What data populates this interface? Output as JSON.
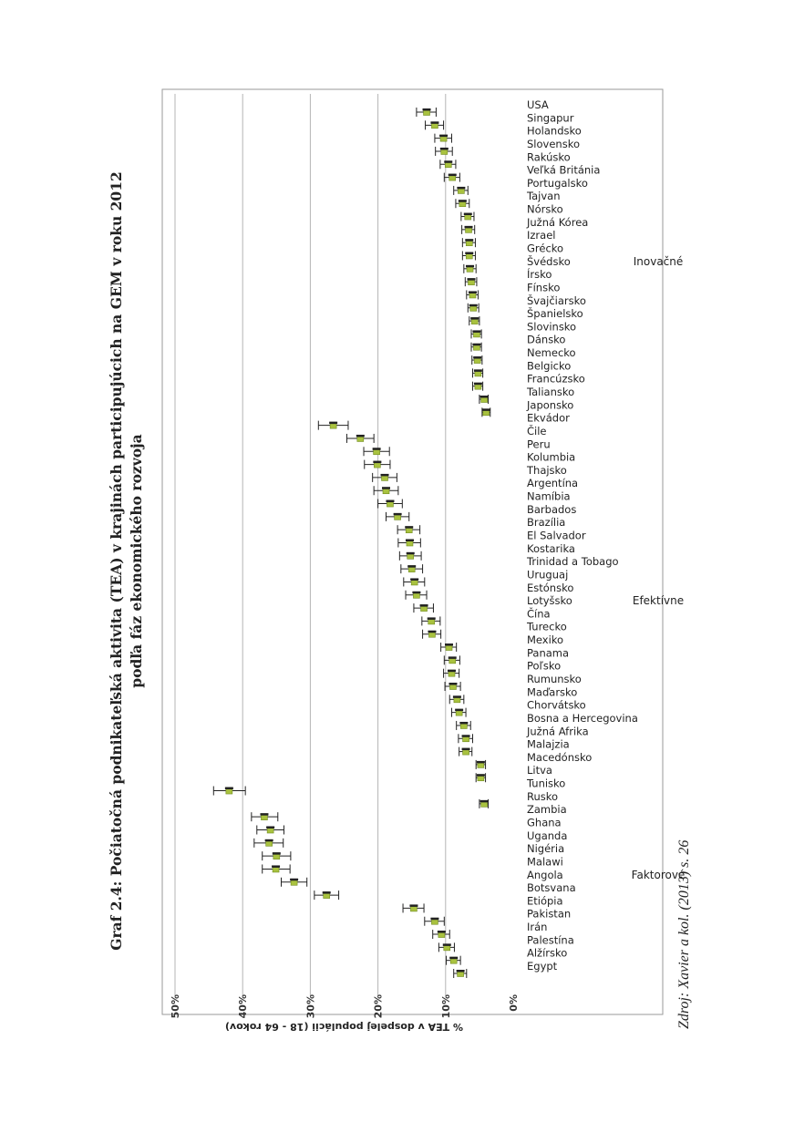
{
  "title_line1": "Graf 2.4: Počiatočná podnikateľská aktivita (TEA) v krajinách participujúcich na GEM v roku 2012",
  "title_line2": "podľa fáz ekonomického rozvoja",
  "source": "Zdroj: Xavier a kol. (2013) s. 26",
  "chart_data": {
    "type": "scatter",
    "title": "Graf 2.4: Počiatočná podnikateľská aktivita (TEA) v krajinách participujúcich na GEM v roku 2012",
    "subtitle": "podľa fáz ekonomického rozvoja",
    "ylabel": "% TEA v dospelej populácii (18 - 64 rokov)",
    "xlabel": "",
    "ylim": [
      0,
      50
    ],
    "yticks": [
      "0%",
      "10%",
      "20%",
      "30%",
      "40%",
      "50%"
    ],
    "grid": true,
    "error_bars": true,
    "marker_color": "#a9c23f",
    "groups": [
      {
        "label": "Faktorové",
        "start": 0,
        "end": 14
      },
      {
        "label": "Efektívne",
        "start": 15,
        "end": 41
      },
      {
        "label": "Inovačné",
        "start": 42,
        "end": 66
      }
    ],
    "points": [
      {
        "country": "Egypt",
        "value": 7.8,
        "low": 6.9,
        "high": 8.8
      },
      {
        "country": "Alžírsko",
        "value": 8.8,
        "low": 7.8,
        "high": 9.9
      },
      {
        "country": "Palestína",
        "value": 9.8,
        "low": 8.7,
        "high": 11.0
      },
      {
        "country": "Irán",
        "value": 10.6,
        "low": 9.4,
        "high": 11.9
      },
      {
        "country": "Pakistan",
        "value": 11.6,
        "low": 10.2,
        "high": 13.1
      },
      {
        "country": "Etiópia",
        "value": 14.7,
        "low": 13.2,
        "high": 16.3
      },
      {
        "country": "Botsvana",
        "value": 27.6,
        "low": 25.8,
        "high": 29.4
      },
      {
        "country": "Angola",
        "value": 32.4,
        "low": 30.5,
        "high": 34.3
      },
      {
        "country": "Malawi",
        "value": 35.1,
        "low": 33.0,
        "high": 37.1
      },
      {
        "country": "Nigéria",
        "value": 35.0,
        "low": 32.9,
        "high": 37.1
      },
      {
        "country": "Uganda",
        "value": 36.1,
        "low": 34.0,
        "high": 38.3
      },
      {
        "country": "Ghana",
        "value": 35.9,
        "low": 33.9,
        "high": 37.9
      },
      {
        "country": "Zambia",
        "value": 36.8,
        "low": 34.8,
        "high": 38.7
      },
      {
        "country": "Rusko",
        "value": 4.3,
        "low": 3.7,
        "high": 5.0
      },
      {
        "country": "Tunisko",
        "value": 42.0,
        "low": 39.6,
        "high": 44.3
      },
      {
        "country": "Litva",
        "value": 4.8,
        "low": 4.1,
        "high": 5.5
      },
      {
        "country": "Macedónsko",
        "value": 4.8,
        "low": 4.1,
        "high": 5.5
      },
      {
        "country": "Malajzia",
        "value": 7.0,
        "low": 6.1,
        "high": 8.0
      },
      {
        "country": "Južná Afrika",
        "value": 7.0,
        "low": 6.0,
        "high": 8.1
      },
      {
        "country": "Bosna a Hercegovina",
        "value": 7.3,
        "low": 6.3,
        "high": 8.4
      },
      {
        "country": "Chorvátsko",
        "value": 8.0,
        "low": 7.0,
        "high": 9.1
      },
      {
        "country": "Maďarsko",
        "value": 8.3,
        "low": 7.3,
        "high": 9.4
      },
      {
        "country": "Rumunsko",
        "value": 8.9,
        "low": 7.8,
        "high": 10.1
      },
      {
        "country": "Poľsko",
        "value": 9.1,
        "low": 8.0,
        "high": 10.3
      },
      {
        "country": "Panama",
        "value": 9.0,
        "low": 7.9,
        "high": 10.2
      },
      {
        "country": "Mexiko",
        "value": 9.5,
        "low": 8.4,
        "high": 10.7
      },
      {
        "country": "Turecko",
        "value": 12.0,
        "low": 10.7,
        "high": 13.4
      },
      {
        "country": "Čína",
        "value": 12.1,
        "low": 10.8,
        "high": 13.5
      },
      {
        "country": "Lotyšsko",
        "value": 13.2,
        "low": 11.8,
        "high": 14.7
      },
      {
        "country": "Estónsko",
        "value": 14.3,
        "low": 12.8,
        "high": 15.9
      },
      {
        "country": "Uruguaj",
        "value": 14.6,
        "low": 13.1,
        "high": 16.2
      },
      {
        "country": "Trinidad a Tobago",
        "value": 15.0,
        "low": 13.4,
        "high": 16.6
      },
      {
        "country": "Kostarika",
        "value": 15.2,
        "low": 13.6,
        "high": 16.8
      },
      {
        "country": "El Salvador",
        "value": 15.3,
        "low": 13.7,
        "high": 17.0
      },
      {
        "country": "Brazília",
        "value": 15.4,
        "low": 13.8,
        "high": 17.1
      },
      {
        "country": "Barbados",
        "value": 17.1,
        "low": 15.4,
        "high": 18.8
      },
      {
        "country": "Namíbia",
        "value": 18.2,
        "low": 16.4,
        "high": 20.0
      },
      {
        "country": "Argentína",
        "value": 18.8,
        "low": 17.0,
        "high": 20.6
      },
      {
        "country": "Thajsko",
        "value": 19.0,
        "low": 17.2,
        "high": 20.8
      },
      {
        "country": "Kolumbia",
        "value": 20.1,
        "low": 18.2,
        "high": 22.0
      },
      {
        "country": "Peru",
        "value": 20.2,
        "low": 18.3,
        "high": 22.1
      },
      {
        "country": "Čile",
        "value": 22.6,
        "low": 20.6,
        "high": 24.6
      },
      {
        "country": "Ekvádor",
        "value": 26.6,
        "low": 24.4,
        "high": 28.8
      },
      {
        "country": "Japonsko",
        "value": 4.0,
        "low": 3.4,
        "high": 4.6
      },
      {
        "country": "Taliansko",
        "value": 4.3,
        "low": 3.7,
        "high": 5.0
      },
      {
        "country": "Francúzsko",
        "value": 5.2,
        "low": 4.5,
        "high": 6.0
      },
      {
        "country": "Belgicko",
        "value": 5.2,
        "low": 4.5,
        "high": 6.0
      },
      {
        "country": "Nemecko",
        "value": 5.3,
        "low": 4.6,
        "high": 6.1
      },
      {
        "country": "Dánsko",
        "value": 5.4,
        "low": 4.7,
        "high": 6.2
      },
      {
        "country": "Slovinsko",
        "value": 5.4,
        "low": 4.7,
        "high": 6.2
      },
      {
        "country": "Španielsko",
        "value": 5.7,
        "low": 5.0,
        "high": 6.5
      },
      {
        "country": "Švajčiarsko",
        "value": 5.9,
        "low": 5.1,
        "high": 6.7
      },
      {
        "country": "Fínsko",
        "value": 6.0,
        "low": 5.2,
        "high": 6.9
      },
      {
        "country": "Írsko",
        "value": 6.2,
        "low": 5.4,
        "high": 7.1
      },
      {
        "country": "Švédsko",
        "value": 6.4,
        "low": 5.5,
        "high": 7.3
      },
      {
        "country": "Grécko",
        "value": 6.5,
        "low": 5.6,
        "high": 7.5
      },
      {
        "country": "Izrael",
        "value": 6.5,
        "low": 5.6,
        "high": 7.5
      },
      {
        "country": "Južná Kórea",
        "value": 6.6,
        "low": 5.7,
        "high": 7.6
      },
      {
        "country": "Nórsko",
        "value": 6.7,
        "low": 5.8,
        "high": 7.7
      },
      {
        "country": "Tajvan",
        "value": 7.5,
        "low": 6.5,
        "high": 8.5
      },
      {
        "country": "Portugalsko",
        "value": 7.7,
        "low": 6.7,
        "high": 8.8
      },
      {
        "country": "Veľká Británia",
        "value": 9.0,
        "low": 7.9,
        "high": 10.2
      },
      {
        "country": "Rakúsko",
        "value": 9.6,
        "low": 8.5,
        "high": 10.8
      },
      {
        "country": "Slovensko",
        "value": 10.2,
        "low": 9.0,
        "high": 11.5
      },
      {
        "country": "Holandsko",
        "value": 10.3,
        "low": 9.1,
        "high": 11.6
      },
      {
        "country": "Singapur",
        "value": 11.6,
        "low": 10.3,
        "high": 13.0
      },
      {
        "country": "USA",
        "value": 12.8,
        "low": 11.4,
        "high": 14.3
      }
    ]
  }
}
